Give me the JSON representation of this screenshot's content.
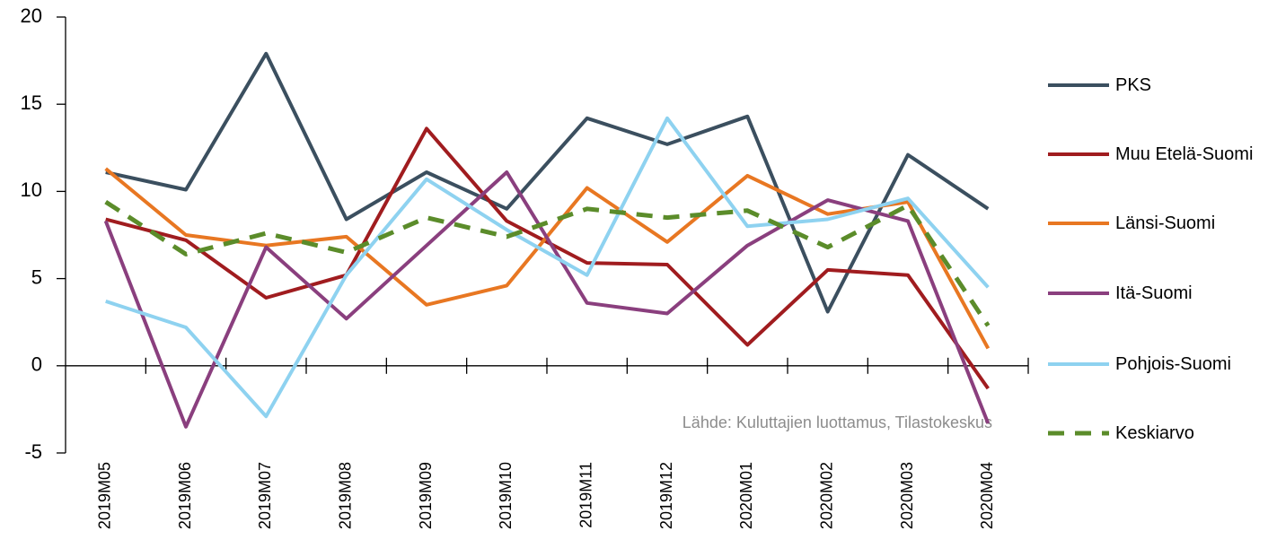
{
  "chart_data": {
    "type": "line",
    "categories": [
      "2019M05",
      "2019M06",
      "2019M07",
      "2019M08",
      "2019M09",
      "2019M10",
      "2019M11",
      "2019M12",
      "2020M01",
      "2020M02",
      "2020M03",
      "2020M04"
    ],
    "series": [
      {
        "name": "PKS",
        "color": "#3b4f5f",
        "values": [
          11.1,
          10.1,
          17.9,
          8.4,
          11.1,
          9.0,
          14.2,
          12.7,
          14.3,
          3.1,
          12.1,
          9.0
        ]
      },
      {
        "name": "Muu Etelä-Suomi",
        "color": "#a01c1f",
        "values": [
          8.4,
          7.2,
          3.9,
          5.2,
          13.6,
          8.3,
          5.9,
          5.8,
          1.2,
          5.5,
          5.2,
          -1.3
        ]
      },
      {
        "name": "Länsi-Suomi",
        "color": "#e87722",
        "values": [
          11.3,
          7.5,
          6.9,
          7.4,
          3.5,
          4.6,
          10.2,
          7.1,
          10.9,
          8.7,
          9.4,
          1.0
        ]
      },
      {
        "name": "Itä-Suomi",
        "color": "#8a3f7e",
        "values": [
          8.3,
          -3.5,
          6.8,
          2.7,
          6.9,
          11.1,
          3.6,
          3.0,
          6.9,
          9.5,
          8.3,
          -3.3
        ]
      },
      {
        "name": "Pohjois-Suomi",
        "color": "#8ed2f0",
        "values": [
          3.7,
          2.2,
          -2.9,
          5.2,
          10.7,
          7.8,
          5.2,
          14.2,
          8.0,
          8.4,
          9.6,
          4.5
        ]
      },
      {
        "name": "Keskiarvo",
        "color": "#5b8c2a",
        "dashed": true,
        "values": [
          9.4,
          6.4,
          7.6,
          6.5,
          8.5,
          7.4,
          9.0,
          8.5,
          8.9,
          6.8,
          9.2,
          2.3
        ]
      }
    ],
    "ylim": [
      -5,
      20
    ],
    "yticks": [
      -5,
      0,
      5,
      10,
      15,
      20
    ],
    "source": "Lähde: Kuluttajien luottamus, Tilastokeskus",
    "legend": "right"
  }
}
